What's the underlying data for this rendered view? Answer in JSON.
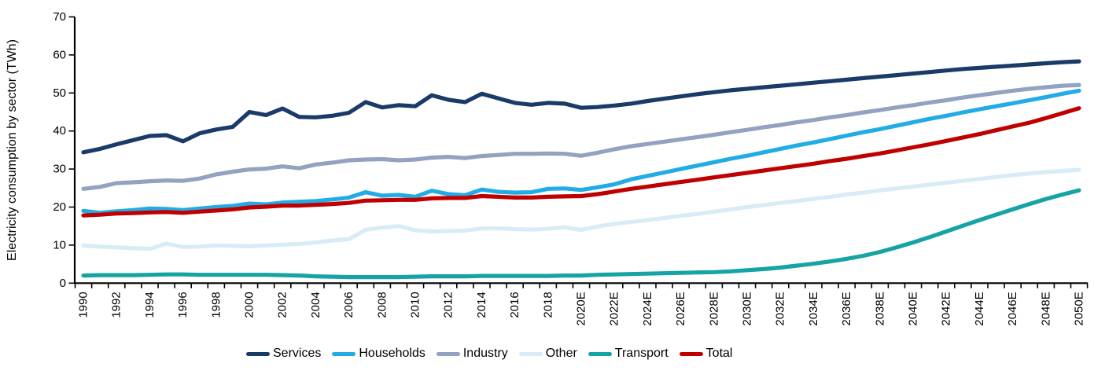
{
  "chart_data": {
    "type": "line",
    "title": "",
    "xlabel": "",
    "ylabel": "Electricity consumption by sector (TWh)",
    "ylim": [
      0,
      70
    ],
    "y_ticks": [
      0,
      10,
      20,
      30,
      40,
      50,
      60,
      70
    ],
    "grid": false,
    "legend_position": "bottom",
    "x_tick_labels": [
      "1990",
      "1992",
      "1994",
      "1996",
      "1998",
      "2000",
      "2002",
      "2004",
      "2006",
      "2008",
      "2010",
      "2012",
      "2014",
      "2016",
      "2018",
      "2020E",
      "2022E",
      "2024E",
      "2026E",
      "2028E",
      "2030E",
      "2032E",
      "2034E",
      "2036E",
      "2038E",
      "2040E",
      "2042E",
      "2044E",
      "2046E",
      "2048E",
      "2050E"
    ],
    "years": [
      1990,
      1991,
      1992,
      1993,
      1994,
      1995,
      1996,
      1997,
      1998,
      1999,
      2000,
      2001,
      2002,
      2003,
      2004,
      2005,
      2006,
      2007,
      2008,
      2009,
      2010,
      2011,
      2012,
      2013,
      2014,
      2015,
      2016,
      2017,
      2018,
      2019,
      2020,
      2021,
      2022,
      2023,
      2024,
      2025,
      2026,
      2027,
      2028,
      2029,
      2030,
      2031,
      2032,
      2033,
      2034,
      2035,
      2036,
      2037,
      2038,
      2039,
      2040,
      2041,
      2042,
      2043,
      2044,
      2045,
      2046,
      2047,
      2048,
      2049,
      2050
    ],
    "estimate_years_suffix": "E",
    "estimate_from_year": 2020,
    "series": [
      {
        "name": "Services",
        "color": "#1A3A68",
        "values": [
          34.4,
          35.3,
          36.5,
          37.6,
          38.7,
          38.9,
          37.3,
          39.4,
          40.4,
          41.1,
          45.0,
          44.2,
          45.9,
          43.7,
          43.6,
          44.0,
          44.8,
          47.6,
          46.2,
          46.8,
          46.5,
          49.4,
          48.2,
          47.6,
          49.8,
          48.6,
          47.4,
          46.9,
          47.4,
          47.2,
          46.1,
          46.3,
          46.7,
          47.2,
          47.9,
          48.5,
          49.1,
          49.7,
          50.2,
          50.7,
          51.1,
          51.5,
          51.9,
          52.3,
          52.7,
          53.1,
          53.5,
          53.9,
          54.3,
          54.7,
          55.1,
          55.5,
          55.9,
          56.3,
          56.6,
          56.9,
          57.2,
          57.5,
          57.8,
          58.1,
          58.3
        ]
      },
      {
        "name": "Households",
        "color": "#22ACE5",
        "values": [
          19.0,
          18.5,
          18.9,
          19.2,
          19.6,
          19.5,
          19.2,
          19.6,
          20.0,
          20.3,
          20.9,
          20.7,
          21.2,
          21.4,
          21.6,
          22.0,
          22.5,
          23.9,
          23.0,
          23.2,
          22.7,
          24.3,
          23.4,
          23.1,
          24.6,
          24.0,
          23.8,
          23.9,
          24.8,
          24.9,
          24.5,
          25.2,
          26.0,
          27.3,
          28.2,
          29.1,
          30.0,
          30.9,
          31.8,
          32.7,
          33.5,
          34.4,
          35.3,
          36.2,
          37.0,
          37.9,
          38.8,
          39.7,
          40.5,
          41.4,
          42.3,
          43.2,
          44.0,
          44.9,
          45.7,
          46.5,
          47.3,
          48.1,
          48.9,
          49.8,
          50.6
        ]
      },
      {
        "name": "Industry",
        "color": "#92A2C0",
        "values": [
          24.8,
          25.3,
          26.3,
          26.5,
          26.8,
          27.0,
          26.9,
          27.5,
          28.6,
          29.3,
          29.9,
          30.1,
          30.7,
          30.2,
          31.2,
          31.7,
          32.3,
          32.5,
          32.6,
          32.3,
          32.5,
          33.0,
          33.2,
          32.9,
          33.4,
          33.7,
          34.0,
          34.0,
          34.1,
          34.0,
          33.5,
          34.3,
          35.2,
          36.0,
          36.6,
          37.2,
          37.8,
          38.4,
          39.0,
          39.7,
          40.3,
          41.0,
          41.6,
          42.3,
          42.9,
          43.6,
          44.2,
          44.9,
          45.5,
          46.2,
          46.8,
          47.5,
          48.1,
          48.8,
          49.4,
          50.0,
          50.6,
          51.1,
          51.5,
          51.9,
          52.1
        ]
      },
      {
        "name": "Other",
        "color": "#D8ECF6",
        "values": [
          9.9,
          9.6,
          9.4,
          9.2,
          9.0,
          10.4,
          9.5,
          9.6,
          9.9,
          9.8,
          9.7,
          9.9,
          10.1,
          10.3,
          10.7,
          11.2,
          11.6,
          14.0,
          14.6,
          15.0,
          13.9,
          13.6,
          13.7,
          13.8,
          14.4,
          14.4,
          14.2,
          14.1,
          14.3,
          14.7,
          14.0,
          14.9,
          15.6,
          16.1,
          16.6,
          17.1,
          17.7,
          18.2,
          18.8,
          19.4,
          20.0,
          20.5,
          21.1,
          21.6,
          22.2,
          22.7,
          23.3,
          23.8,
          24.4,
          24.9,
          25.4,
          25.9,
          26.4,
          26.9,
          27.4,
          27.9,
          28.4,
          28.8,
          29.2,
          29.5,
          29.8
        ]
      },
      {
        "name": "Transport",
        "color": "#16A3A3",
        "values": [
          2.0,
          2.1,
          2.1,
          2.1,
          2.2,
          2.3,
          2.3,
          2.2,
          2.2,
          2.2,
          2.2,
          2.2,
          2.1,
          2.0,
          1.8,
          1.7,
          1.6,
          1.6,
          1.6,
          1.6,
          1.7,
          1.8,
          1.8,
          1.8,
          1.9,
          1.9,
          1.9,
          1.9,
          1.9,
          2.0,
          2.0,
          2.2,
          2.3,
          2.4,
          2.5,
          2.6,
          2.7,
          2.8,
          2.9,
          3.1,
          3.4,
          3.7,
          4.1,
          4.6,
          5.1,
          5.7,
          6.4,
          7.2,
          8.2,
          9.4,
          10.7,
          12.1,
          13.6,
          15.1,
          16.6,
          18.0,
          19.4,
          20.8,
          22.1,
          23.3,
          24.4
        ]
      },
      {
        "name": "Total",
        "color": "#C00000",
        "values": [
          17.8,
          18.0,
          18.3,
          18.4,
          18.6,
          18.7,
          18.5,
          18.8,
          19.1,
          19.4,
          19.9,
          20.1,
          20.4,
          20.4,
          20.6,
          20.8,
          21.1,
          21.7,
          21.8,
          21.9,
          21.9,
          22.3,
          22.4,
          22.4,
          22.9,
          22.7,
          22.5,
          22.5,
          22.7,
          22.8,
          22.9,
          23.4,
          24.1,
          24.8,
          25.4,
          26.0,
          26.6,
          27.2,
          27.8,
          28.4,
          29.0,
          29.6,
          30.2,
          30.8,
          31.4,
          32.1,
          32.7,
          33.4,
          34.1,
          34.9,
          35.7,
          36.5,
          37.4,
          38.3,
          39.2,
          40.2,
          41.2,
          42.2,
          43.4,
          44.7,
          46.0
        ]
      }
    ]
  }
}
